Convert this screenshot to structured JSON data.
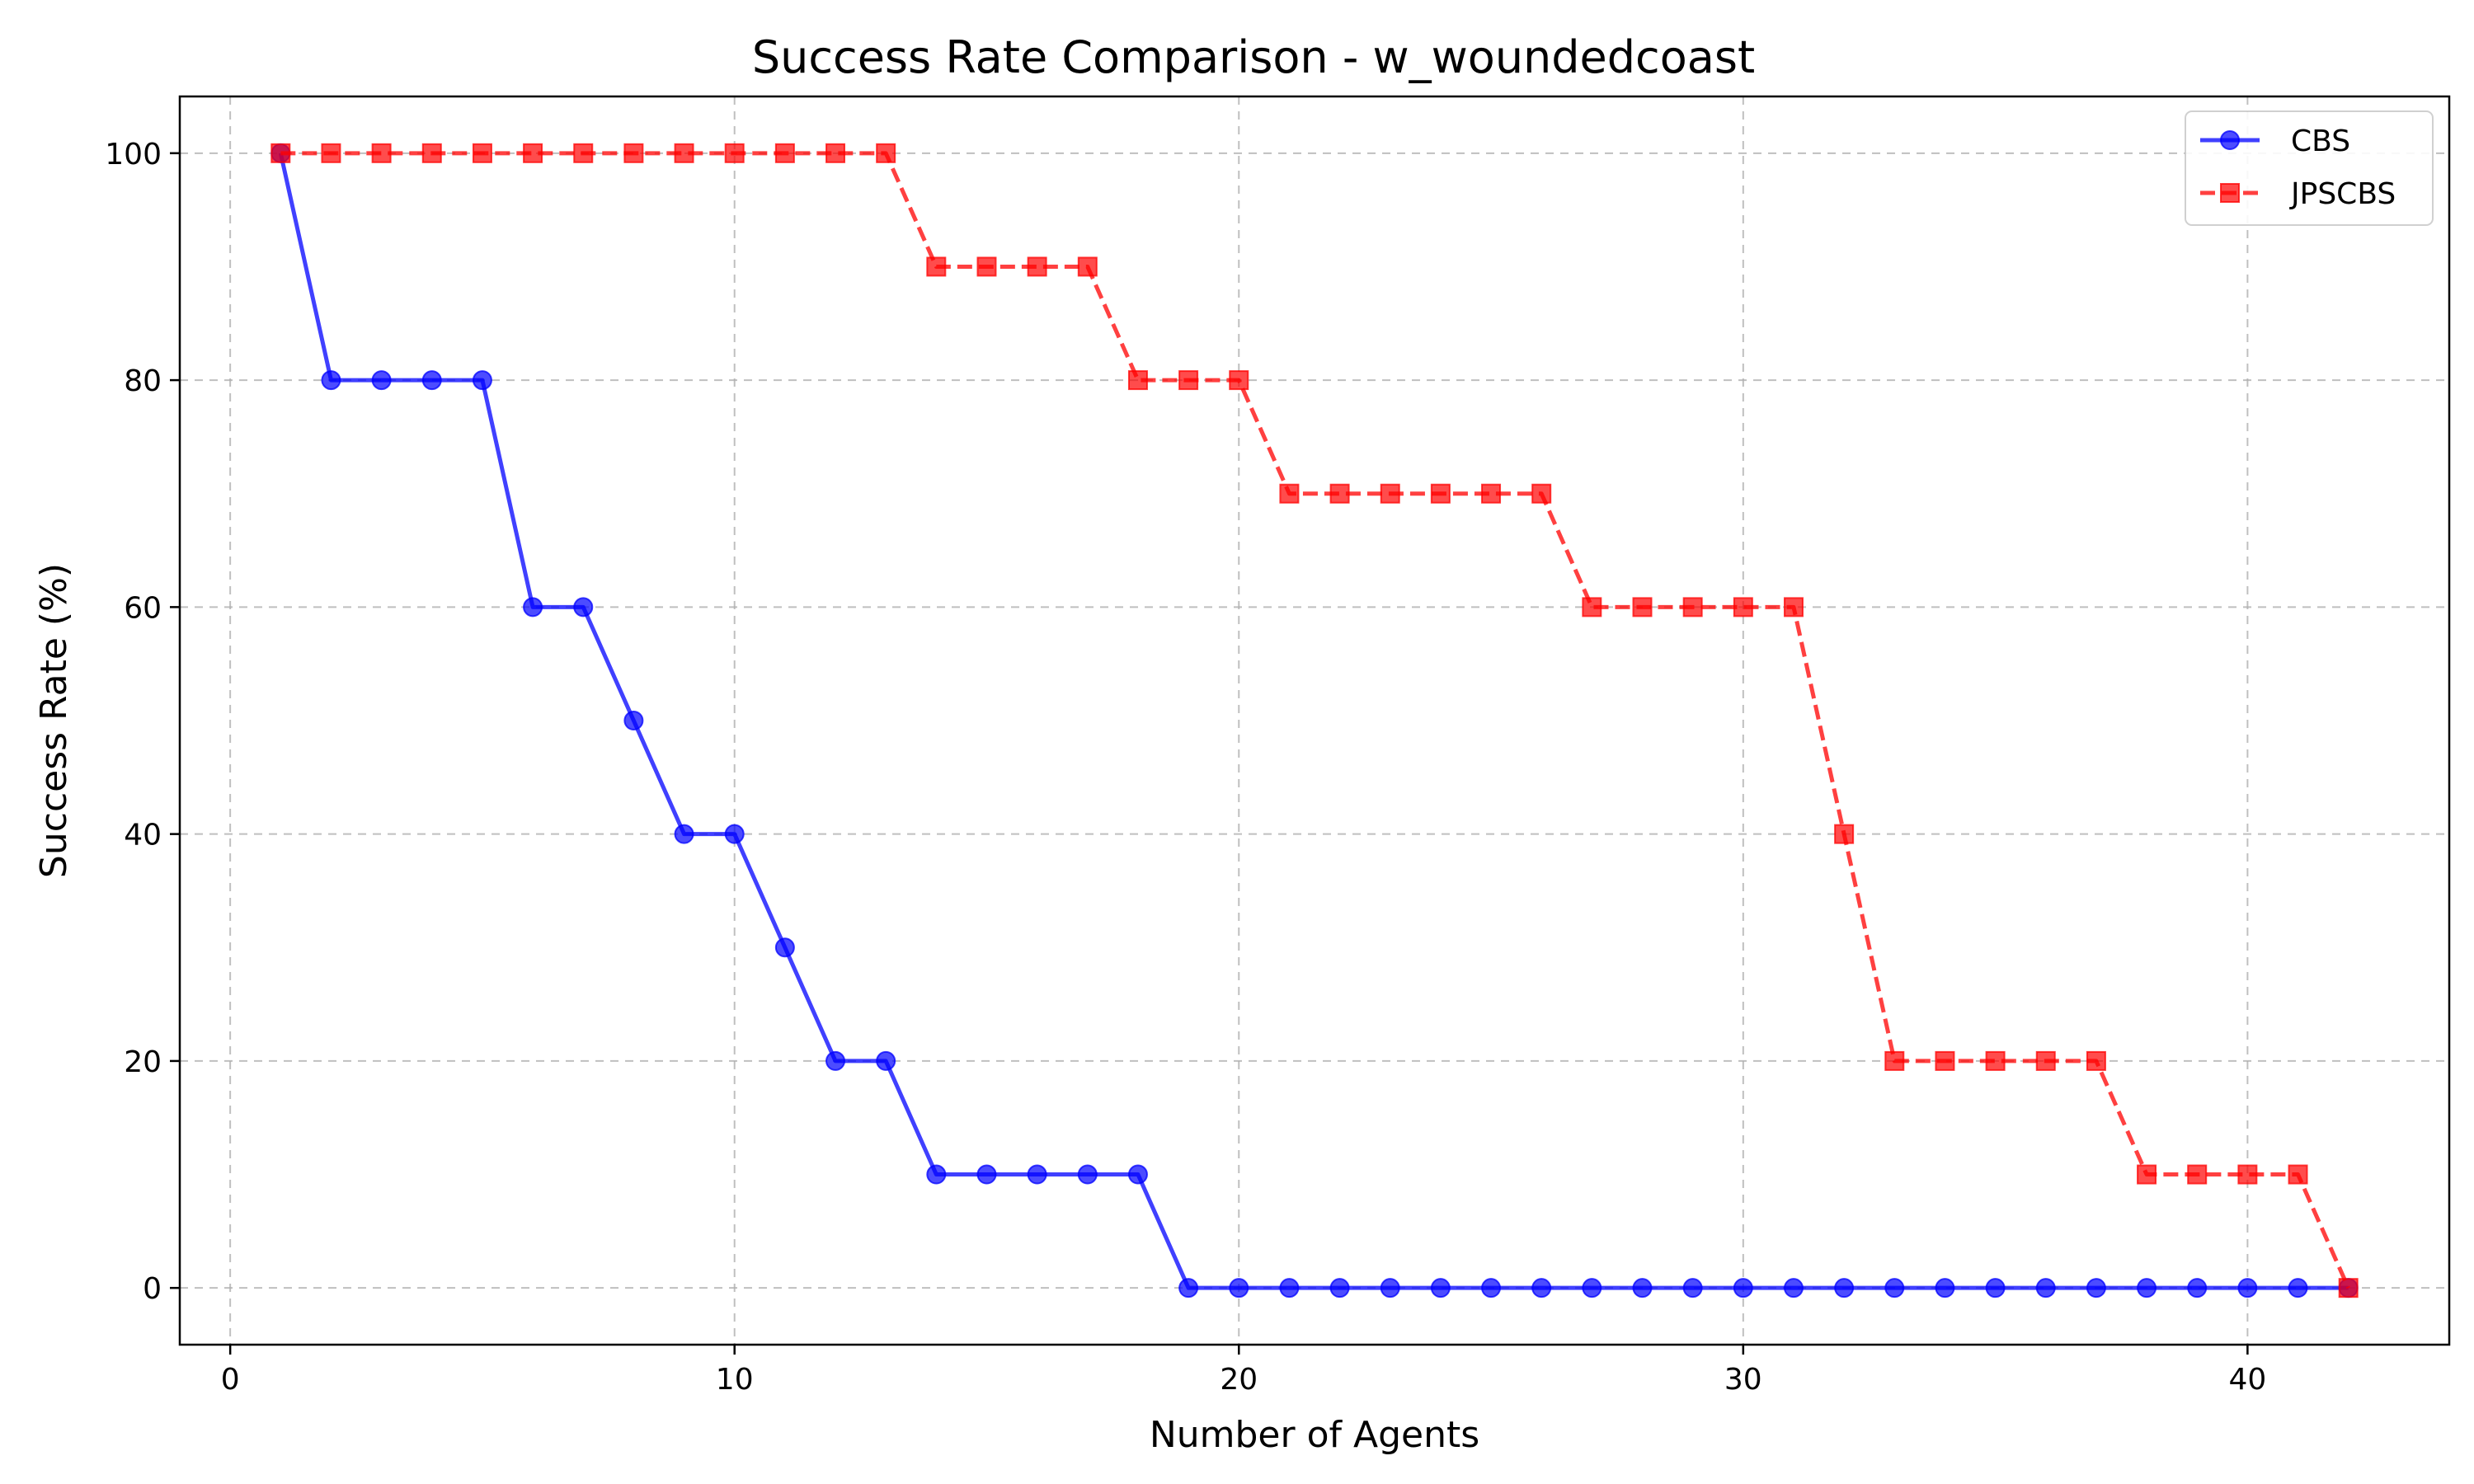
{
  "chart_data": {
    "type": "line",
    "title": "Success Rate Comparison - w_woundedcoast",
    "xlabel": "Number of Agents",
    "ylabel": "Success Rate (%)",
    "xlim": [
      -1,
      44
    ],
    "ylim": [
      -5,
      105
    ],
    "xticks": [
      0,
      10,
      20,
      30,
      40
    ],
    "yticks": [
      0,
      20,
      40,
      60,
      80,
      100
    ],
    "grid": true,
    "legend_position": "top-right",
    "x": [
      1,
      2,
      3,
      4,
      5,
      6,
      7,
      8,
      9,
      10,
      11,
      12,
      13,
      14,
      15,
      16,
      17,
      18,
      19,
      20,
      21,
      22,
      23,
      24,
      25,
      26,
      27,
      28,
      29,
      30,
      31,
      32,
      33,
      34,
      35,
      36,
      37,
      38,
      39,
      40,
      41,
      42
    ],
    "series": [
      {
        "name": "CBS",
        "color": "#0000ff",
        "marker": "circle",
        "line_style": "solid",
        "values": [
          100,
          80,
          80,
          80,
          80,
          60,
          60,
          50,
          40,
          40,
          30,
          20,
          20,
          10,
          10,
          10,
          10,
          10,
          0,
          0,
          0,
          0,
          0,
          0,
          0,
          0,
          0,
          0,
          0,
          0,
          0,
          0,
          0,
          0,
          0,
          0,
          0,
          0,
          0,
          0,
          0,
          0
        ]
      },
      {
        "name": "JPSCBS",
        "color": "#ff0000",
        "marker": "square",
        "line_style": "dashed",
        "values": [
          100,
          100,
          100,
          100,
          100,
          100,
          100,
          100,
          100,
          100,
          100,
          100,
          100,
          90,
          90,
          90,
          90,
          80,
          80,
          80,
          70,
          70,
          70,
          70,
          70,
          70,
          60,
          60,
          60,
          60,
          60,
          40,
          20,
          20,
          20,
          20,
          20,
          10,
          10,
          10,
          10,
          0
        ]
      }
    ]
  }
}
